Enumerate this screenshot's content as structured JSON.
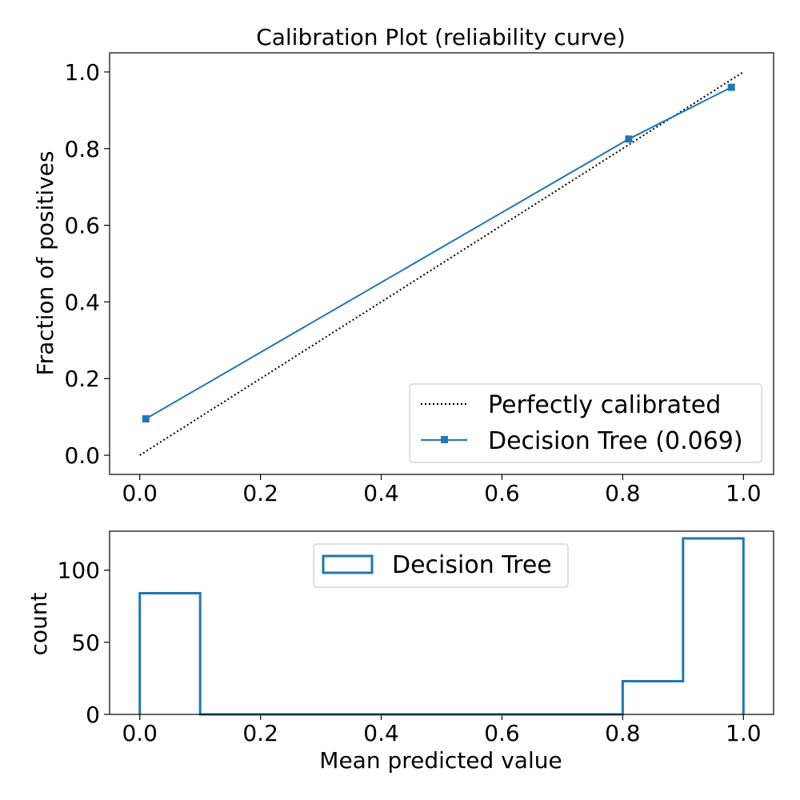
{
  "chart_data": [
    {
      "type": "line",
      "title": "Calibration Plot  (reliability curve)",
      "xlabel": "",
      "ylabel": "Fraction of positives",
      "xlim": [
        -0.05,
        1.05
      ],
      "ylim": [
        -0.05,
        1.05
      ],
      "xticks": [
        0.0,
        0.2,
        0.4,
        0.6,
        0.8,
        1.0
      ],
      "yticks": [
        0.0,
        0.2,
        0.4,
        0.6,
        0.8,
        1.0
      ],
      "tick_labels_x": [
        "0.0",
        "0.2",
        "0.4",
        "0.6",
        "0.8",
        "1.0"
      ],
      "tick_labels_y": [
        "0.0",
        "0.2",
        "0.4",
        "0.6",
        "0.8",
        "1.0"
      ],
      "legend_position": "lower-right",
      "series": [
        {
          "name": "Perfectly calibrated",
          "style": "dotted",
          "color": "#000000",
          "x": [
            0.0,
            1.0
          ],
          "y": [
            0.0,
            1.0
          ]
        },
        {
          "name": "Decision Tree (0.069)",
          "style": "solid-square-markers",
          "color": "#1f77b4",
          "x": [
            0.01,
            0.81,
            0.98
          ],
          "y": [
            0.095,
            0.825,
            0.96
          ]
        }
      ]
    },
    {
      "type": "histogram",
      "title": "",
      "xlabel": "Mean predicted value",
      "ylabel": "count",
      "xlim": [
        -0.05,
        1.05
      ],
      "ylim": [
        0,
        127
      ],
      "xticks": [
        0.0,
        0.2,
        0.4,
        0.6,
        0.8,
        1.0
      ],
      "yticks": [
        0,
        50,
        100
      ],
      "tick_labels_x": [
        "0.0",
        "0.2",
        "0.4",
        "0.6",
        "0.8",
        "1.0"
      ],
      "tick_labels_y": [
        "0",
        "50",
        "100"
      ],
      "legend_position": "top-center",
      "series": [
        {
          "name": "Decision Tree",
          "color": "#1f77b4",
          "bin_edges": [
            0.0,
            0.1,
            0.2,
            0.3,
            0.4,
            0.5,
            0.6,
            0.7,
            0.8,
            0.9,
            1.0
          ],
          "counts": [
            84,
            0,
            0,
            0,
            0,
            0,
            0,
            0,
            23,
            122
          ]
        }
      ]
    }
  ]
}
